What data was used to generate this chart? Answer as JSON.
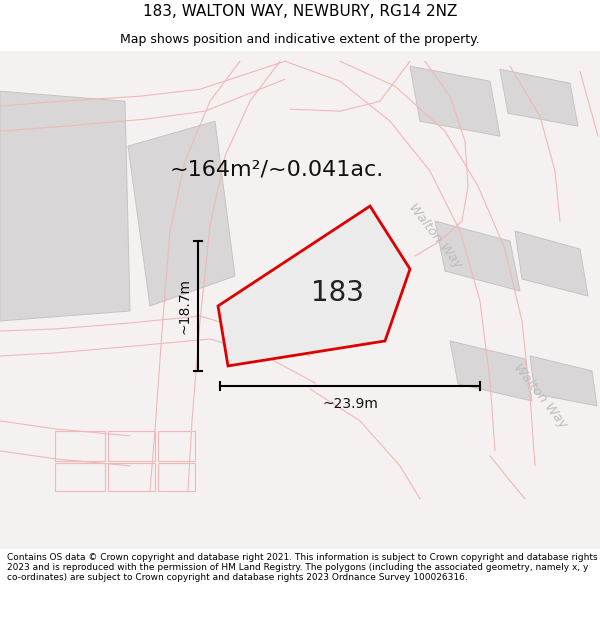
{
  "title": "183, WALTON WAY, NEWBURY, RG14 2NZ",
  "subtitle": "Map shows position and indicative extent of the property.",
  "area_label": "~164m²/~0.041ac.",
  "property_number": "183",
  "width_label": "~23.9m",
  "height_label": "~18.7m",
  "footer": "Contains OS data © Crown copyright and database right 2021. This information is subject to Crown copyright and database rights 2023 and is reproduced with the permission of HM Land Registry. The polygons (including the associated geometry, namely x, y co-ordinates) are subject to Crown copyright and database rights 2023 Ordnance Survey 100026316.",
  "bg_color": "#f7f4f4",
  "property_fill": "#ebebeb",
  "property_outline": "#dd0000",
  "building_fill": "#d8d6d6",
  "building_outline": "#c5c3c3",
  "pink_road": "#f0b8b8",
  "road_label_color": "#c0bcbc",
  "title_fontsize": 11,
  "subtitle_fontsize": 9,
  "area_fontsize": 16,
  "number_fontsize": 20,
  "measure_fontsize": 10,
  "footer_fontsize": 6.5,
  "walton_way_label_1": "Walton Way",
  "walton_way_label_2": "Walton Way"
}
